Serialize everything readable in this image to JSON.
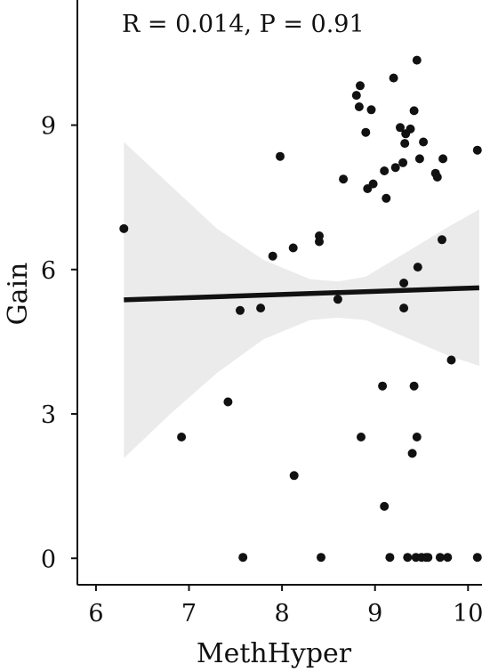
{
  "chart_data": {
    "type": "scatter",
    "annotation": "R = 0.014, P = 0.91",
    "xlabel": "MethHyper",
    "ylabel": "Gain",
    "xlim": [
      5.8,
      10.15
    ],
    "ylim": [
      -0.55,
      11.6
    ],
    "x_ticks": [
      "6",
      "7",
      "8",
      "9",
      "10"
    ],
    "y_ticks": [
      "0",
      "3",
      "6",
      "9"
    ],
    "grid": false,
    "point_color": "#111111",
    "band_color": "#ebebeb",
    "line_color": "#111111",
    "regression": {
      "x": [
        6.3,
        10.12
      ],
      "y": [
        5.37,
        5.62
      ]
    },
    "confidence_band": {
      "x": [
        6.3,
        6.8,
        7.3,
        7.8,
        8.3,
        8.6,
        8.9,
        9.2,
        9.5,
        9.8,
        10.12
      ],
      "lower": [
        2.08,
        3.0,
        3.85,
        4.55,
        4.95,
        5.0,
        4.95,
        4.7,
        4.45,
        4.2,
        4.0
      ],
      "upper": [
        8.65,
        7.75,
        6.85,
        6.2,
        5.8,
        5.75,
        5.85,
        6.2,
        6.55,
        6.9,
        7.25
      ]
    },
    "points": {
      "x": [
        6.3,
        6.92,
        7.42,
        7.55,
        7.58,
        7.77,
        7.9,
        7.98,
        8.12,
        8.13,
        8.4,
        8.4,
        8.42,
        8.6,
        8.66,
        8.8,
        8.83,
        8.84,
        8.85,
        8.9,
        8.92,
        8.96,
        8.98,
        9.08,
        9.1,
        9.1,
        9.12,
        9.16,
        9.2,
        9.22,
        9.27,
        9.3,
        9.31,
        9.31,
        9.32,
        9.33,
        9.35,
        9.38,
        9.4,
        9.42,
        9.42,
        9.44,
        9.45,
        9.45,
        9.46,
        9.48,
        9.5,
        9.52,
        9.55,
        9.57,
        9.65,
        9.67,
        9.7,
        9.72,
        9.73,
        9.78,
        9.82,
        10.1,
        10.1
      ],
      "y": [
        6.85,
        2.52,
        3.25,
        5.15,
        0.02,
        5.2,
        6.28,
        8.35,
        6.45,
        1.72,
        6.7,
        6.58,
        0.02,
        5.38,
        7.88,
        9.62,
        9.38,
        9.82,
        2.52,
        8.85,
        7.68,
        9.32,
        7.78,
        3.58,
        8.05,
        1.08,
        7.48,
        0.02,
        9.98,
        8.12,
        8.95,
        8.22,
        5.72,
        5.2,
        8.62,
        8.82,
        0.02,
        8.92,
        2.18,
        3.58,
        9.3,
        0.02,
        10.35,
        2.52,
        6.05,
        8.3,
        0.02,
        8.65,
        0.02,
        0.02,
        8.0,
        7.92,
        0.02,
        6.62,
        8.3,
        0.02,
        4.12,
        8.48,
        0.02
      ]
    }
  }
}
